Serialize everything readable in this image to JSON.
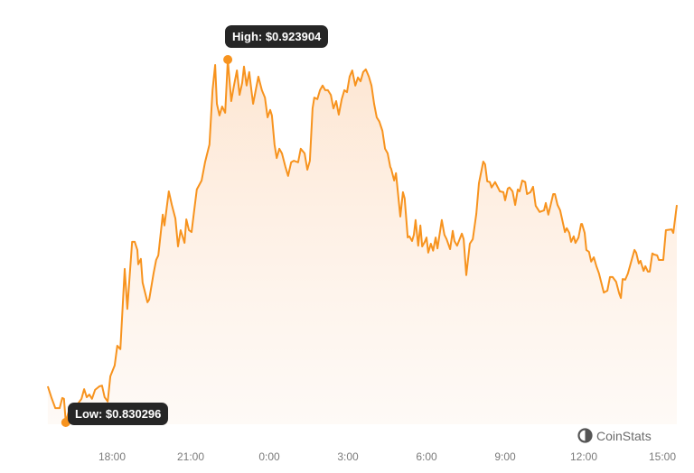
{
  "chart_data": {
    "type": "area",
    "line_color": "#f7931e",
    "fill_color": "#fde6d2",
    "x_ticks": [
      "18:00",
      "21:00",
      "0:00",
      "3:00",
      "6:00",
      "9:00",
      "12:00",
      "15:00"
    ],
    "ylim": [
      0.830296,
      0.923904
    ],
    "grid": false,
    "times": [
      "15:33",
      "15:41",
      "15:50",
      "16:00",
      "16:06",
      "16:10",
      "16:14",
      "16:21",
      "16:29",
      "16:41",
      "16:50",
      "16:56",
      "17:02",
      "17:08",
      "17:14",
      "17:21",
      "17:31",
      "17:37",
      "17:43",
      "17:50",
      "17:56",
      "18:06",
      "18:12",
      "18:19",
      "18:29",
      "18:35",
      "18:46",
      "18:52",
      "18:58",
      "19:00",
      "19:06",
      "19:10",
      "19:21",
      "19:25",
      "19:35",
      "19:41",
      "19:46",
      "19:56",
      "20:00",
      "20:10",
      "20:17",
      "20:25",
      "20:31",
      "20:37",
      "20:46",
      "20:50",
      "20:56",
      "21:02",
      "21:08",
      "21:14",
      "21:25",
      "21:33",
      "21:43",
      "21:50",
      "21:56",
      "22:00",
      "22:06",
      "22:12",
      "22:19",
      "22:25",
      "22:33",
      "22:39",
      "22:46",
      "22:52",
      "22:58",
      "23:02",
      "23:08",
      "23:14",
      "23:19",
      "23:23",
      "23:29",
      "23:35",
      "23:43",
      "23:50",
      "23:56",
      "00:02",
      "00:06",
      "00:12",
      "00:17",
      "00:23",
      "00:29",
      "00:37",
      "00:43",
      "00:50",
      "00:56",
      "01:06",
      "01:12",
      "01:21",
      "01:27",
      "01:33",
      "01:39",
      "01:43",
      "01:50",
      "01:56",
      "02:02",
      "02:08",
      "02:14",
      "02:21",
      "02:27",
      "02:33",
      "02:39",
      "02:46",
      "02:52",
      "02:58",
      "03:04",
      "03:10",
      "03:17",
      "03:23",
      "03:29",
      "03:35",
      "03:41",
      "03:48",
      "03:54",
      "04:00",
      "04:06",
      "04:12",
      "04:19",
      "04:25",
      "04:31",
      "04:37",
      "04:39",
      "04:46",
      "04:50",
      "05:00",
      "05:06",
      "05:10",
      "05:17",
      "05:21",
      "05:27",
      "05:31",
      "05:35",
      "05:41",
      "05:46",
      "05:50",
      "05:56",
      "06:00",
      "06:04",
      "06:10",
      "06:15",
      "06:21",
      "06:25",
      "06:35",
      "06:41",
      "06:46",
      "06:54",
      "07:00",
      "07:04",
      "07:10",
      "07:21",
      "07:25",
      "07:31",
      "07:39",
      "07:46",
      "07:54",
      "08:00",
      "08:10",
      "08:14",
      "08:19",
      "08:25",
      "08:29",
      "08:37",
      "08:48",
      "08:56",
      "09:00",
      "09:06",
      "09:10",
      "09:17",
      "09:23",
      "09:29",
      "09:33",
      "09:39",
      "09:46",
      "09:50",
      "09:58",
      "10:04",
      "10:10",
      "10:19",
      "10:29",
      "10:33",
      "10:39",
      "10:50",
      "10:54",
      "11:00",
      "11:06",
      "11:17",
      "11:21",
      "11:27",
      "11:31",
      "11:37",
      "11:41",
      "11:48",
      "11:54",
      "11:56",
      "12:02",
      "12:06",
      "12:12",
      "12:17",
      "12:23",
      "12:29",
      "12:35",
      "12:46",
      "12:54",
      "13:00",
      "13:06",
      "13:14",
      "13:21",
      "13:25",
      "13:29",
      "13:35",
      "13:41",
      "13:56",
      "14:00",
      "14:06",
      "14:10",
      "14:17",
      "14:21",
      "14:27",
      "14:31",
      "14:37",
      "14:41",
      "14:48",
      "14:52",
      "15:02",
      "15:08",
      "15:21",
      "15:25",
      "15:33"
    ],
    "prices": [
      0.8396,
      0.8368,
      0.834,
      0.834,
      0.8366,
      0.8364,
      0.830296,
      0.8333,
      0.8345,
      0.835,
      0.8364,
      0.8389,
      0.8368,
      0.8375,
      0.8364,
      0.8387,
      0.8396,
      0.8398,
      0.8368,
      0.8357,
      0.8422,
      0.845,
      0.8501,
      0.8492,
      0.8699,
      0.8596,
      0.8769,
      0.8769,
      0.8748,
      0.8711,
      0.8725,
      0.8664,
      0.8613,
      0.862,
      0.8687,
      0.8722,
      0.8734,
      0.8839,
      0.8811,
      0.8899,
      0.8864,
      0.8829,
      0.8757,
      0.8799,
      0.8766,
      0.8827,
      0.8799,
      0.8794,
      0.885,
      0.8904,
      0.8927,
      0.8974,
      0.902,
      0.916,
      0.9225,
      0.9125,
      0.9095,
      0.9118,
      0.9102,
      0.923904,
      0.9132,
      0.9172,
      0.9211,
      0.9148,
      0.9179,
      0.9221,
      0.9172,
      0.9207,
      0.916,
      0.9125,
      0.916,
      0.9195,
      0.916,
      0.9141,
      0.909,
      0.9109,
      0.9095,
      0.902,
      0.8985,
      0.9009,
      0.8997,
      0.8962,
      0.8939,
      0.8974,
      0.8978,
      0.8974,
      0.9009,
      0.8997,
      0.8955,
      0.8978,
      0.9113,
      0.9141,
      0.9137,
      0.916,
      0.9172,
      0.916,
      0.916,
      0.9148,
      0.9113,
      0.9132,
      0.9097,
      0.9137,
      0.916,
      0.9155,
      0.9195,
      0.9211,
      0.9172,
      0.9193,
      0.9183,
      0.9207,
      0.9214,
      0.9195,
      0.9172,
      0.9125,
      0.909,
      0.9079,
      0.9055,
      0.9009,
      0.8997,
      0.8962,
      0.8957,
      0.8927,
      0.8946,
      0.8834,
      0.8897,
      0.8881,
      0.878,
      0.8783,
      0.8771,
      0.8787,
      0.8825,
      0.8759,
      0.8811,
      0.8757,
      0.8769,
      0.878,
      0.8741,
      0.8764,
      0.8746,
      0.878,
      0.8752,
      0.8825,
      0.8787,
      0.8776,
      0.875,
      0.8797,
      0.8771,
      0.8759,
      0.879,
      0.8776,
      0.8683,
      0.8764,
      0.8776,
      0.8841,
      0.892,
      0.8976,
      0.8969,
      0.8925,
      0.8923,
      0.8909,
      0.8923,
      0.8899,
      0.8897,
      0.8876,
      0.8906,
      0.8909,
      0.8899,
      0.8864,
      0.8904,
      0.8899,
      0.8927,
      0.8923,
      0.8892,
      0.8897,
      0.8911,
      0.8862,
      0.8846,
      0.885,
      0.8869,
      0.8839,
      0.8892,
      0.8892,
      0.8864,
      0.885,
      0.8794,
      0.8804,
      0.8792,
      0.8769,
      0.8783,
      0.8766,
      0.878,
      0.8815,
      0.8815,
      0.8792,
      0.8748,
      0.8743,
      0.8718,
      0.8729,
      0.8706,
      0.8687,
      0.8638,
      0.8643,
      0.8678,
      0.8678,
      0.8666,
      0.8636,
      0.8624,
      0.8673,
      0.8671,
      0.8687,
      0.8748,
      0.8741,
      0.8713,
      0.872,
      0.8694,
      0.8706,
      0.8692,
      0.8692,
      0.8739,
      0.8736,
      0.8734,
      0.8722,
      0.8722,
      0.8799,
      0.8801,
      0.8792,
      0.8864
    ],
    "annotations": {
      "high_label": "High: $0.923904",
      "low_label": "Low: $0.830296"
    }
  },
  "brand": {
    "name": "CoinStats",
    "icon": "coinstats-logo-icon"
  }
}
